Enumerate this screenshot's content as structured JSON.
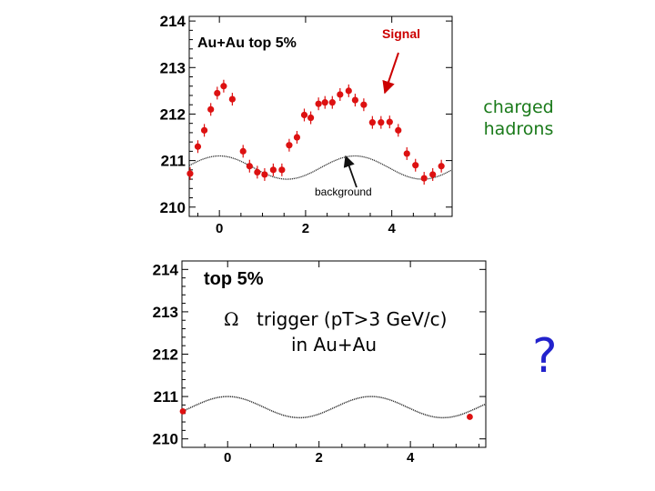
{
  "side_labels": {
    "charged_line1": "charged",
    "charged_line2": "hadrons",
    "question": "?"
  },
  "colors": {
    "signal_marker": "#dd1111",
    "signal_label": "#cc0000",
    "background_curve": "#333333",
    "charged_label": "#1a7a1a",
    "question_mark": "#2222cc"
  },
  "chart_data": [
    {
      "type": "scatter",
      "title": "Au+Au top 5%",
      "xlim": [
        -0.7,
        5.4
      ],
      "ylim": [
        209.8,
        214.1
      ],
      "x_ticks": [
        0,
        2,
        4
      ],
      "y_ticks": [
        210,
        211,
        212,
        213,
        214
      ],
      "grid": false,
      "annotations": {
        "signal": "Signal",
        "background": "background"
      },
      "series": [
        {
          "kind": "points",
          "x": [
            -0.68,
            -0.5,
            -0.35,
            -0.2,
            -0.05,
            0.1,
            0.3,
            0.55,
            0.7,
            0.88,
            1.05,
            1.25,
            1.45,
            1.62,
            1.8,
            1.97,
            2.12,
            2.3,
            2.45,
            2.62,
            2.8,
            3.0,
            3.15,
            3.35,
            3.55,
            3.75,
            3.95,
            4.15,
            4.35,
            4.55,
            4.75,
            4.95,
            5.15
          ],
          "y": [
            210.72,
            211.3,
            211.65,
            212.1,
            212.45,
            212.6,
            212.32,
            211.2,
            210.88,
            210.75,
            210.7,
            210.8,
            210.8,
            211.33,
            211.5,
            211.98,
            211.92,
            212.22,
            212.25,
            212.25,
            212.42,
            212.5,
            212.3,
            212.2,
            211.82,
            211.82,
            211.83,
            211.65,
            211.15,
            210.9,
            210.62,
            210.7,
            210.88
          ]
        },
        {
          "kind": "curve",
          "offset": 210.85,
          "amplitude": 0.25,
          "period": 3.14159
        }
      ]
    },
    {
      "type": "scatter",
      "title": "top 5%",
      "xlim": [
        -1.0,
        5.65
      ],
      "ylim": [
        209.8,
        214.2
      ],
      "x_ticks": [
        0,
        2,
        4
      ],
      "y_ticks": [
        210,
        211,
        212,
        213,
        214
      ],
      "grid": false,
      "annotations": {
        "omega_symbol": "Ω",
        "trigger_line1": "trigger (pT>3 GeV/c)",
        "trigger_line2": "in Au+Au"
      },
      "series": [
        {
          "kind": "points",
          "x": [
            -0.98,
            5.3
          ],
          "y": [
            210.65,
            210.52
          ]
        },
        {
          "kind": "curve",
          "offset": 210.75,
          "amplitude": 0.25,
          "period": 3.14159
        }
      ]
    }
  ]
}
